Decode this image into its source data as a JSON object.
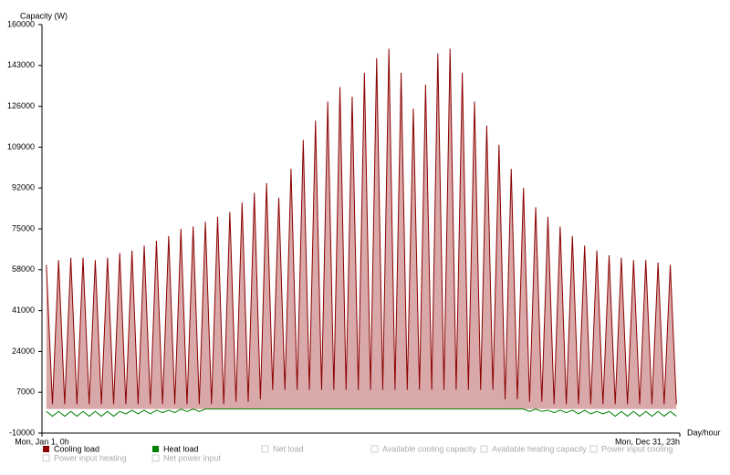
{
  "chart_data": {
    "type": "line",
    "y_label": "Capacity (W)",
    "x_label": "Day/hour",
    "xlim": [
      0,
      8759
    ],
    "xticks": [
      {
        "value": 0,
        "label": "Mon, Jan 1, 0h"
      },
      {
        "value": 8759,
        "label": "Mon, Dec 31, 23h"
      }
    ],
    "ylim": [
      -10000,
      160000
    ],
    "yticks": [
      -10000,
      7000,
      24000,
      41000,
      58000,
      75000,
      92000,
      109000,
      126000,
      143000,
      160000
    ],
    "x": [
      60,
      144,
      228,
      312,
      396,
      480,
      564,
      648,
      732,
      816,
      900,
      984,
      1068,
      1152,
      1236,
      1320,
      1404,
      1488,
      1572,
      1656,
      1740,
      1824,
      1908,
      1992,
      2076,
      2160,
      2244,
      2328,
      2412,
      2496,
      2580,
      2664,
      2748,
      2832,
      2916,
      3000,
      3084,
      3168,
      3252,
      3336,
      3420,
      3504,
      3588,
      3672,
      3756,
      3840,
      3924,
      4008,
      4092,
      4176,
      4260,
      4344,
      4428,
      4512,
      4596,
      4680,
      4764,
      4848,
      4932,
      5016,
      5100,
      5184,
      5268,
      5352,
      5436,
      5520,
      5604,
      5688,
      5772,
      5856,
      5940,
      6024,
      6108,
      6192,
      6276,
      6360,
      6444,
      6528,
      6612,
      6696,
      6780,
      6864,
      6948,
      7032,
      7116,
      7200,
      7284,
      7368,
      7452,
      7536,
      7620,
      7704,
      7788,
      7872,
      7956,
      8040,
      8124,
      8208,
      8292,
      8376,
      8460,
      8544,
      8628,
      8712
    ],
    "series": [
      {
        "name": "Cooling load",
        "color": "#8b0000",
        "fill": "#d9a9a9",
        "values": [
          60000,
          2000,
          62000,
          2000,
          63000,
          2000,
          63000,
          2000,
          62000,
          2000,
          63000,
          2000,
          65000,
          2000,
          66000,
          2000,
          68000,
          2000,
          70000,
          2000,
          72000,
          2000,
          75000,
          2000,
          76000,
          2000,
          78000,
          2000,
          80000,
          2000,
          82000,
          3000,
          86000,
          3000,
          90000,
          4000,
          94000,
          8000,
          88000,
          8000,
          100000,
          8000,
          112000,
          8000,
          120000,
          8000,
          128000,
          8000,
          134000,
          8000,
          130000,
          8000,
          140000,
          8000,
          146000,
          8000,
          150000,
          8000,
          140000,
          8000,
          125000,
          8000,
          135000,
          8000,
          148000,
          8000,
          150000,
          8000,
          140000,
          8000,
          128000,
          8000,
          118000,
          8000,
          110000,
          4000,
          100000,
          4000,
          92000,
          3000,
          84000,
          3000,
          80000,
          2000,
          76000,
          2000,
          72000,
          2000,
          68000,
          2000,
          66000,
          2000,
          64000,
          2000,
          63000,
          2000,
          62000,
          2000,
          62000,
          2000,
          61000,
          2000,
          60000,
          2000
        ]
      },
      {
        "name": "Heat load",
        "color": "#008000",
        "fill": "none",
        "values": [
          -1000,
          -3000,
          -1000,
          -3000,
          -1000,
          -3000,
          -1000,
          -3000,
          -1000,
          -3000,
          -1000,
          -3000,
          -1000,
          -2000,
          -500,
          -2000,
          -500,
          -2000,
          -500,
          -1500,
          -500,
          -1500,
          0,
          -1000,
          0,
          -1000,
          0,
          0,
          0,
          0,
          0,
          0,
          0,
          0,
          0,
          0,
          0,
          0,
          0,
          0,
          0,
          0,
          0,
          0,
          0,
          0,
          0,
          0,
          0,
          0,
          0,
          0,
          0,
          0,
          0,
          0,
          0,
          0,
          0,
          0,
          0,
          0,
          0,
          0,
          0,
          0,
          0,
          0,
          0,
          0,
          0,
          0,
          0,
          0,
          0,
          0,
          0,
          0,
          0,
          -1000,
          0,
          -1000,
          -500,
          -1500,
          -500,
          -1500,
          -500,
          -2000,
          -500,
          -2000,
          -1000,
          -2000,
          -1000,
          -3000,
          -1000,
          -3000,
          -1000,
          -3000,
          -1000,
          -3000,
          -1000,
          -3000,
          -1000,
          -3000
        ]
      }
    ],
    "legend_inactive": [
      "Net load",
      "Available cooling capacity",
      "Available heating capacity",
      "Power input cooling",
      "Power input heating",
      "Net power input"
    ]
  }
}
